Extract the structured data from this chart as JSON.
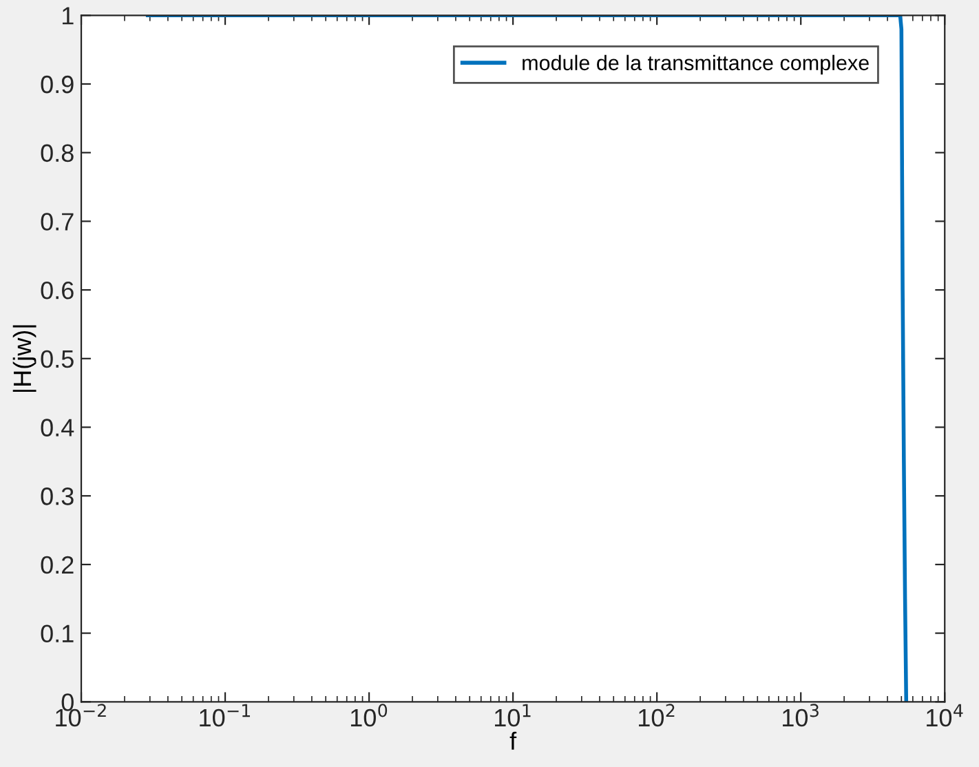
{
  "chart_data": {
    "type": "line",
    "xlabel": "f",
    "ylabel": "|H(jw)|",
    "log": "x",
    "series": [
      {
        "name": "module de la transmittance complexe",
        "color": "#0072bd",
        "x": [
          0.029,
          0.1,
          1,
          10,
          100,
          1000,
          4900,
          5000,
          5100,
          5200,
          5300,
          5400
        ],
        "values": [
          1,
          1,
          1,
          1,
          1,
          1,
          1,
          0.98,
          0.6,
          0.35,
          0.15,
          0
        ]
      }
    ],
    "xlim": [
      0.01,
      10000
    ],
    "xticks": [
      {
        "value": 0.01,
        "label": "10$^{−2}$"
      },
      {
        "value": 0.1,
        "label": "10$^{−1}$"
      },
      {
        "value": 1,
        "label": "10$^{0}$"
      },
      {
        "value": 10,
        "label": "10$^{1}$"
      },
      {
        "value": 100,
        "label": "10$^{2}$"
      },
      {
        "value": 1000,
        "label": "10$^{3}$"
      },
      {
        "value": 10000,
        "label": "10$^{4}$"
      }
    ],
    "ylim": [
      0,
      1
    ],
    "yticks": [
      0,
      0.1,
      0.2,
      0.3,
      0.4,
      0.5,
      0.6,
      0.7,
      0.8,
      0.9,
      1
    ],
    "legend": "top right",
    "grid": false
  }
}
